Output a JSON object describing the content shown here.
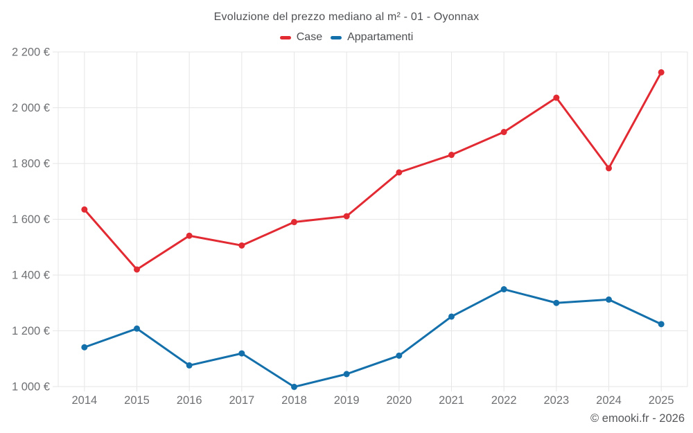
{
  "chart_data": {
    "type": "line",
    "title": "Evoluzione del prezzo mediano al m² - 01 - Oyonnax",
    "categories": [
      "2014",
      "2015",
      "2016",
      "2017",
      "2018",
      "2019",
      "2020",
      "2021",
      "2022",
      "2023",
      "2024",
      "2025"
    ],
    "series": [
      {
        "name": "Case",
        "color": "#e22a33",
        "values": [
          1635,
          1420,
          1541,
          1506,
          1590,
          1611,
          1768,
          1831,
          1913,
          2036,
          1783,
          2127
        ]
      },
      {
        "name": "Appartamenti",
        "color": "#1470ab",
        "values": [
          1141,
          1208,
          1076,
          1119,
          999,
          1045,
          1111,
          1251,
          1349,
          1300,
          1312,
          1224
        ]
      }
    ],
    "xlabel": "",
    "ylabel": "",
    "ylim": [
      1000,
      2200
    ],
    "ytick_step": 200,
    "ytick_labels": [
      "1 000 €",
      "1 200 €",
      "1 400 €",
      "1 600 €",
      "1 800 €",
      "2 000 €",
      "2 200 €"
    ],
    "grid": true,
    "legend_position": "top"
  },
  "footer": {
    "credit": "© emooki.fr - 2026"
  },
  "colors": {
    "grid": "#e6e6e6",
    "tick_text": "#6e7073",
    "title_text": "#4d4f52"
  }
}
